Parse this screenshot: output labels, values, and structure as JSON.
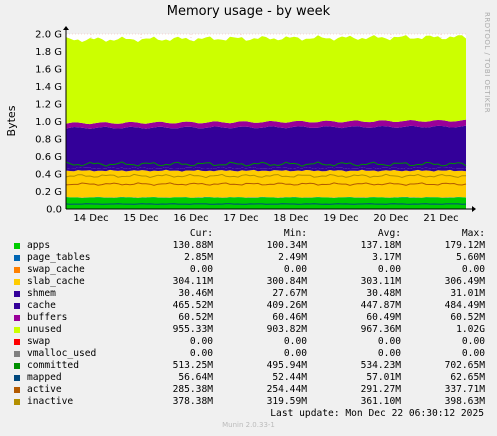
{
  "chart_data": {
    "type": "area",
    "title": "Memory usage - by week",
    "side_text": "RRDTOOL / TOBI OETIKER",
    "ylabel": "Bytes",
    "ylim": [
      0,
      2.0
    ],
    "y_ticks": [
      "0.0",
      "0.2 G",
      "0.4 G",
      "0.6 G",
      "0.8 G",
      "1.0 G",
      "1.2 G",
      "1.4 G",
      "1.6 G",
      "1.8 G",
      "2.0 G"
    ],
    "x_ticks": [
      "14 Dec",
      "15 Dec",
      "16 Dec",
      "17 Dec",
      "18 Dec",
      "19 Dec",
      "20 Dec",
      "21 Dec"
    ],
    "grid": true,
    "column_headers": [
      "Cur:",
      "Min:",
      "Avg:",
      "Max:"
    ],
    "series": [
      {
        "name": "apps",
        "color": "#00cc00",
        "kind": "area",
        "cur": "130.88M",
        "min": "100.34M",
        "avg": "137.18M",
        "max": "179.12M",
        "value_g": 0.131
      },
      {
        "name": "page_tables",
        "color": "#0066b3",
        "kind": "area",
        "cur": "2.85M",
        "min": "2.49M",
        "avg": "3.17M",
        "max": "5.60M",
        "value_g": 0.003
      },
      {
        "name": "swap_cache",
        "color": "#ff8000",
        "kind": "area",
        "cur": "0.00",
        "min": "0.00",
        "avg": "0.00",
        "max": "0.00",
        "value_g": 0.0
      },
      {
        "name": "slab_cache",
        "color": "#ffcc00",
        "kind": "area",
        "cur": "304.11M",
        "min": "300.84M",
        "avg": "303.11M",
        "max": "306.49M",
        "value_g": 0.304
      },
      {
        "name": "shmem",
        "color": "#330099",
        "kind": "area",
        "cur": "30.46M",
        "min": "27.67M",
        "avg": "30.48M",
        "max": "31.01M",
        "value_g": 0.03
      },
      {
        "name": "cache",
        "color": "#330099",
        "kind": "area",
        "cur": "465.52M",
        "min": "409.26M",
        "avg": "447.87M",
        "max": "484.49M",
        "value_g": 0.466
      },
      {
        "name": "buffers",
        "color": "#990099",
        "kind": "area",
        "cur": "60.52M",
        "min": "60.46M",
        "avg": "60.49M",
        "max": "60.52M",
        "value_g": 0.061
      },
      {
        "name": "unused",
        "color": "#ccff00",
        "kind": "area",
        "cur": "955.33M",
        "min": "903.82M",
        "avg": "967.36M",
        "max": "1.02G",
        "value_g": 0.955
      },
      {
        "name": "swap",
        "color": "#ff0000",
        "kind": "area",
        "cur": "0.00",
        "min": "0.00",
        "avg": "0.00",
        "max": "0.00",
        "value_g": 0.0
      },
      {
        "name": "vmalloc_used",
        "color": "#808080",
        "kind": "line",
        "cur": "0.00",
        "min": "0.00",
        "avg": "0.00",
        "max": "0.00",
        "value_g": 0.0
      },
      {
        "name": "committed",
        "color": "#008f00",
        "kind": "line",
        "cur": "513.25M",
        "min": "495.94M",
        "avg": "534.23M",
        "max": "702.65M",
        "value_g": 0.513
      },
      {
        "name": "mapped",
        "color": "#00487d",
        "kind": "line",
        "cur": "56.64M",
        "min": "52.44M",
        "avg": "57.01M",
        "max": "62.65M",
        "value_g": 0.057
      },
      {
        "name": "active",
        "color": "#b35a00",
        "kind": "line",
        "cur": "285.38M",
        "min": "254.44M",
        "avg": "291.27M",
        "max": "337.71M",
        "value_g": 0.285
      },
      {
        "name": "inactive",
        "color": "#b38f00",
        "kind": "line",
        "cur": "378.38M",
        "min": "319.59M",
        "avg": "361.10M",
        "max": "398.63M",
        "value_g": 0.378
      }
    ]
  },
  "footer": {
    "last_update": "Last update:  Mon Dec 22 06:30:12 2025",
    "munin": "Munin 2.0.33-1"
  }
}
